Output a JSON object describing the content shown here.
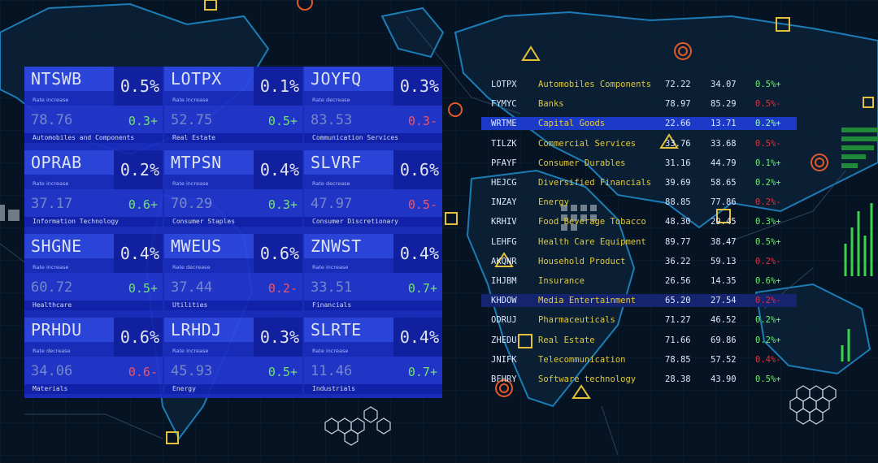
{
  "tiles": [
    {
      "symbol": "NTSWB",
      "pct": "0.5%",
      "rate": "Rate increase",
      "price": "78.76",
      "change": "0.3+",
      "dir": "up",
      "sector": "Automobiles and Components"
    },
    {
      "symbol": "LOTPX",
      "pct": "0.1%",
      "rate": "Rate increase",
      "price": "52.75",
      "change": "0.5+",
      "dir": "up",
      "sector": "Real Estate"
    },
    {
      "symbol": "JOYFQ",
      "pct": "0.3%",
      "rate": "Rate decrease",
      "price": "83.53",
      "change": "0.3-",
      "dir": "down",
      "sector": "Communication Services"
    },
    {
      "symbol": "OPRAB",
      "pct": "0.2%",
      "rate": "Rate increase",
      "price": "37.17",
      "change": "0.6+",
      "dir": "up",
      "sector": "Information Technology"
    },
    {
      "symbol": "MTPSN",
      "pct": "0.4%",
      "rate": "Rate increase",
      "price": "70.29",
      "change": "0.3+",
      "dir": "up",
      "sector": "Consumer Staples"
    },
    {
      "symbol": "SLVRF",
      "pct": "0.6%",
      "rate": "Rate decrease",
      "price": "47.97",
      "change": "0.5-",
      "dir": "down",
      "sector": "Consumer Discretionary"
    },
    {
      "symbol": "SHGNE",
      "pct": "0.4%",
      "rate": "Rate increase",
      "price": "60.72",
      "change": "0.5+",
      "dir": "up",
      "sector": "Healthcare"
    },
    {
      "symbol": "MWEUS",
      "pct": "0.6%",
      "rate": "Rate decrease",
      "price": "37.44",
      "change": "0.2-",
      "dir": "down",
      "sector": "Utilities"
    },
    {
      "symbol": "ZNWST",
      "pct": "0.4%",
      "rate": "Rate increase",
      "price": "33.51",
      "change": "0.7+",
      "dir": "up",
      "sector": "Financials"
    },
    {
      "symbol": "PRHDU",
      "pct": "0.6%",
      "rate": "Rate decrease",
      "price": "34.06",
      "change": "0.6-",
      "dir": "down",
      "sector": "Materials"
    },
    {
      "symbol": "LRHDJ",
      "pct": "0.3%",
      "rate": "Rate increase",
      "price": "45.93",
      "change": "0.5+",
      "dir": "up",
      "sector": "Energy"
    },
    {
      "symbol": "SLRTE",
      "pct": "0.4%",
      "rate": "Rate increase",
      "price": "11.46",
      "change": "0.7+",
      "dir": "up",
      "sector": "Industrials"
    }
  ],
  "table": [
    {
      "ticker": "LOTPX",
      "name": "Automobiles Components",
      "v1": "72.22",
      "v2": "34.07",
      "pct": "0.5%+",
      "dir": "up",
      "hl": ""
    },
    {
      "ticker": "FYMYC",
      "name": "Banks",
      "v1": "78.97",
      "v2": "85.29",
      "pct": "0.5%-",
      "dir": "down",
      "hl": ""
    },
    {
      "ticker": "WRTME",
      "name": "Capital Goods",
      "v1": "22.66",
      "v2": "13.71",
      "pct": "0.2%+",
      "dir": "up",
      "hl": "hl"
    },
    {
      "ticker": "TILZK",
      "name": "Commercial Services",
      "v1": "33.76",
      "v2": "33.68",
      "pct": "0.5%-",
      "dir": "down",
      "hl": ""
    },
    {
      "ticker": "PFAYF",
      "name": "Consumer Durables",
      "v1": "31.16",
      "v2": "44.79",
      "pct": "0.1%+",
      "dir": "up",
      "hl": ""
    },
    {
      "ticker": "HEJCG",
      "name": "Diversified Financials",
      "v1": "39.69",
      "v2": "58.65",
      "pct": "0.2%+",
      "dir": "up",
      "hl": ""
    },
    {
      "ticker": "INZAY",
      "name": "Energy",
      "v1": "88.85",
      "v2": "77.86",
      "pct": "0.2%-",
      "dir": "down",
      "hl": ""
    },
    {
      "ticker": "KRHIV",
      "name": "Food Beverage Tobacco",
      "v1": "48.30",
      "v2": "29.45",
      "pct": "0.3%+",
      "dir": "up",
      "hl": ""
    },
    {
      "ticker": "LEHFG",
      "name": "Health Care Equipment",
      "v1": "89.77",
      "v2": "38.47",
      "pct": "0.5%+",
      "dir": "up",
      "hl": ""
    },
    {
      "ticker": "AKQNR",
      "name": "Household Product",
      "v1": "36.22",
      "v2": "59.13",
      "pct": "0.2%-",
      "dir": "down",
      "hl": ""
    },
    {
      "ticker": "IHJBM",
      "name": "Insurance",
      "v1": "26.56",
      "v2": "14.35",
      "pct": "0.6%+",
      "dir": "up",
      "hl": ""
    },
    {
      "ticker": "KHDOW",
      "name": "Media Entertainment",
      "v1": "65.20",
      "v2": "27.54",
      "pct": "0.2%-",
      "dir": "down",
      "hl": "hl2"
    },
    {
      "ticker": "ODRUJ",
      "name": "Pharmaceuticals",
      "v1": "71.27",
      "v2": "46.52",
      "pct": "0.2%+",
      "dir": "up",
      "hl": ""
    },
    {
      "ticker": "ZHEDU",
      "name": "Real Estate",
      "v1": "71.66",
      "v2": "69.86",
      "pct": "0.2%+",
      "dir": "up",
      "hl": ""
    },
    {
      "ticker": "JNIFK",
      "name": "Telecommunication",
      "v1": "78.85",
      "v2": "57.52",
      "pct": "0.4%-",
      "dir": "down",
      "hl": ""
    },
    {
      "ticker": "BFHRY",
      "name": "Software technology",
      "v1": "28.38",
      "v2": "43.90",
      "pct": "0.5%+",
      "dir": "up",
      "hl": ""
    }
  ]
}
